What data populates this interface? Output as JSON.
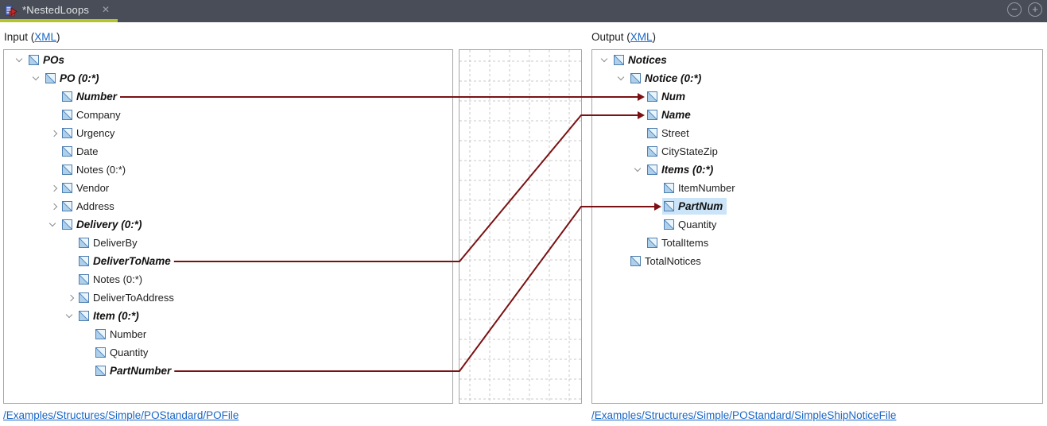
{
  "tab_bar": {
    "title": "*NestedLoops",
    "close_glyph": "✕",
    "zoom_out_glyph": "−",
    "zoom_in_glyph": "+"
  },
  "input_section": {
    "label_prefix": "Input (",
    "link_text": "XML",
    "label_suffix": ")",
    "file_link": "/Examples/Structures/Simple/POStandard/POFile",
    "tree": [
      {
        "label": "POs",
        "level": 0,
        "chevron": "open",
        "mapped": true
      },
      {
        "label": "PO (0:*)",
        "level": 1,
        "chevron": "open",
        "mapped": true
      },
      {
        "label": "Number",
        "level": 2,
        "chevron": "none",
        "mapped": true
      },
      {
        "label": "Company",
        "level": 2,
        "chevron": "none",
        "mapped": false
      },
      {
        "label": "Urgency",
        "level": 2,
        "chevron": "closed",
        "mapped": false
      },
      {
        "label": "Date",
        "level": 2,
        "chevron": "none",
        "mapped": false
      },
      {
        "label": "Notes (0:*)",
        "level": 2,
        "chevron": "none",
        "mapped": false
      },
      {
        "label": "Vendor",
        "level": 2,
        "chevron": "closed",
        "mapped": false
      },
      {
        "label": "Address",
        "level": 2,
        "chevron": "closed",
        "mapped": false
      },
      {
        "label": "Delivery (0:*)",
        "level": 2,
        "chevron": "open",
        "mapped": true
      },
      {
        "label": "DeliverBy",
        "level": 3,
        "chevron": "none",
        "mapped": false
      },
      {
        "label": "DeliverToName",
        "level": 3,
        "chevron": "none",
        "mapped": true
      },
      {
        "label": "Notes (0:*)",
        "level": 3,
        "chevron": "none",
        "mapped": false
      },
      {
        "label": "DeliverToAddress",
        "level": 3,
        "chevron": "closed",
        "mapped": false
      },
      {
        "label": "Item (0:*)",
        "level": 3,
        "chevron": "open",
        "mapped": true
      },
      {
        "label": "Number",
        "level": 4,
        "chevron": "none",
        "mapped": false
      },
      {
        "label": "Quantity",
        "level": 4,
        "chevron": "none",
        "mapped": false
      },
      {
        "label": "PartNumber",
        "level": 4,
        "chevron": "none",
        "mapped": true
      }
    ]
  },
  "output_section": {
    "label_prefix": "Output (",
    "link_text": "XML",
    "label_suffix": ")",
    "file_link": "/Examples/Structures/Simple/POStandard/SimpleShipNoticeFile",
    "tree": [
      {
        "label": "Notices",
        "level": 0,
        "chevron": "open",
        "mapped": true
      },
      {
        "label": "Notice (0:*)",
        "level": 1,
        "chevron": "open",
        "mapped": true
      },
      {
        "label": "Num",
        "level": 2,
        "chevron": "none",
        "mapped": true
      },
      {
        "label": "Name",
        "level": 2,
        "chevron": "none",
        "mapped": true
      },
      {
        "label": "Street",
        "level": 2,
        "chevron": "none",
        "mapped": false
      },
      {
        "label": "CityStateZip",
        "level": 2,
        "chevron": "none",
        "mapped": false
      },
      {
        "label": "Items (0:*)",
        "level": 2,
        "chevron": "open",
        "mapped": true
      },
      {
        "label": "ItemNumber",
        "level": 3,
        "chevron": "none",
        "mapped": false
      },
      {
        "label": "PartNum",
        "level": 3,
        "chevron": "none",
        "mapped": true,
        "selected": true
      },
      {
        "label": "Quantity",
        "level": 3,
        "chevron": "none",
        "mapped": false
      },
      {
        "label": "TotalItems",
        "level": 2,
        "chevron": "none",
        "mapped": false
      },
      {
        "label": "TotalNotices",
        "level": 1,
        "chevron": "none",
        "mapped": false
      }
    ]
  },
  "connections": [
    {
      "from": "Number",
      "to": "Num",
      "from_row": 2,
      "to_row": 2
    },
    {
      "from": "DeliverToName",
      "to": "Name",
      "from_row": 11,
      "to_row": 3
    },
    {
      "from": "PartNumber",
      "to": "PartNum",
      "from_row": 17,
      "to_row": 8
    }
  ],
  "colors": {
    "connection": "#7b1113",
    "tab_accent": "#b4c42d",
    "selection": "#cbe4f8",
    "link": "#1a66c5",
    "grid_line": "#c9c9c9"
  }
}
